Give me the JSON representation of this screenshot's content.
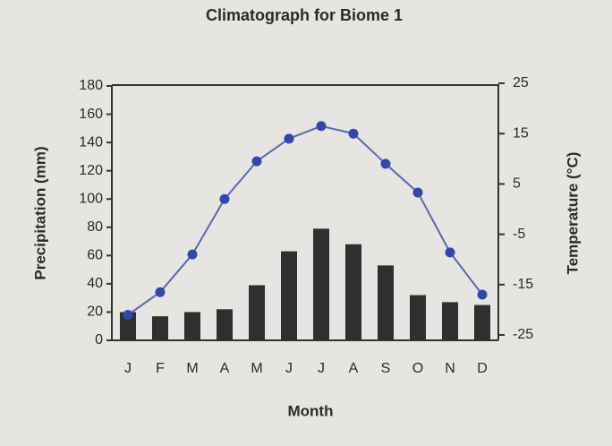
{
  "chart_data": {
    "type": "bar-line",
    "title": "Climatograph for Biome 1",
    "xlabel": "Month",
    "ylabel": "Precipitation (mm)",
    "y2label": "Temperature (°C)",
    "categories": [
      "J",
      "F",
      "M",
      "A",
      "M",
      "J",
      "J",
      "A",
      "S",
      "O",
      "N",
      "D"
    ],
    "series": [
      {
        "type": "bar",
        "color": "#2f2f2f",
        "values": [
          20,
          17,
          20,
          22,
          39,
          63,
          79,
          68,
          53,
          32,
          27,
          25
        ]
      },
      {
        "type": "line",
        "axis": "y2",
        "color": "#5b66b0",
        "marker_color": "#3346b0",
        "values": [
          -21,
          -16.5,
          -9,
          2,
          9.5,
          14,
          16.5,
          15,
          9,
          3.3,
          -8.6,
          -17
        ]
      }
    ],
    "ylim": [
      0,
      180
    ],
    "yticks": [
      0,
      20,
      40,
      60,
      80,
      100,
      120,
      140,
      160,
      180
    ],
    "y2lim": [
      -25,
      25
    ],
    "y2ticks": [
      -25,
      -15,
      -5,
      5,
      15,
      25
    ],
    "grid": false
  }
}
